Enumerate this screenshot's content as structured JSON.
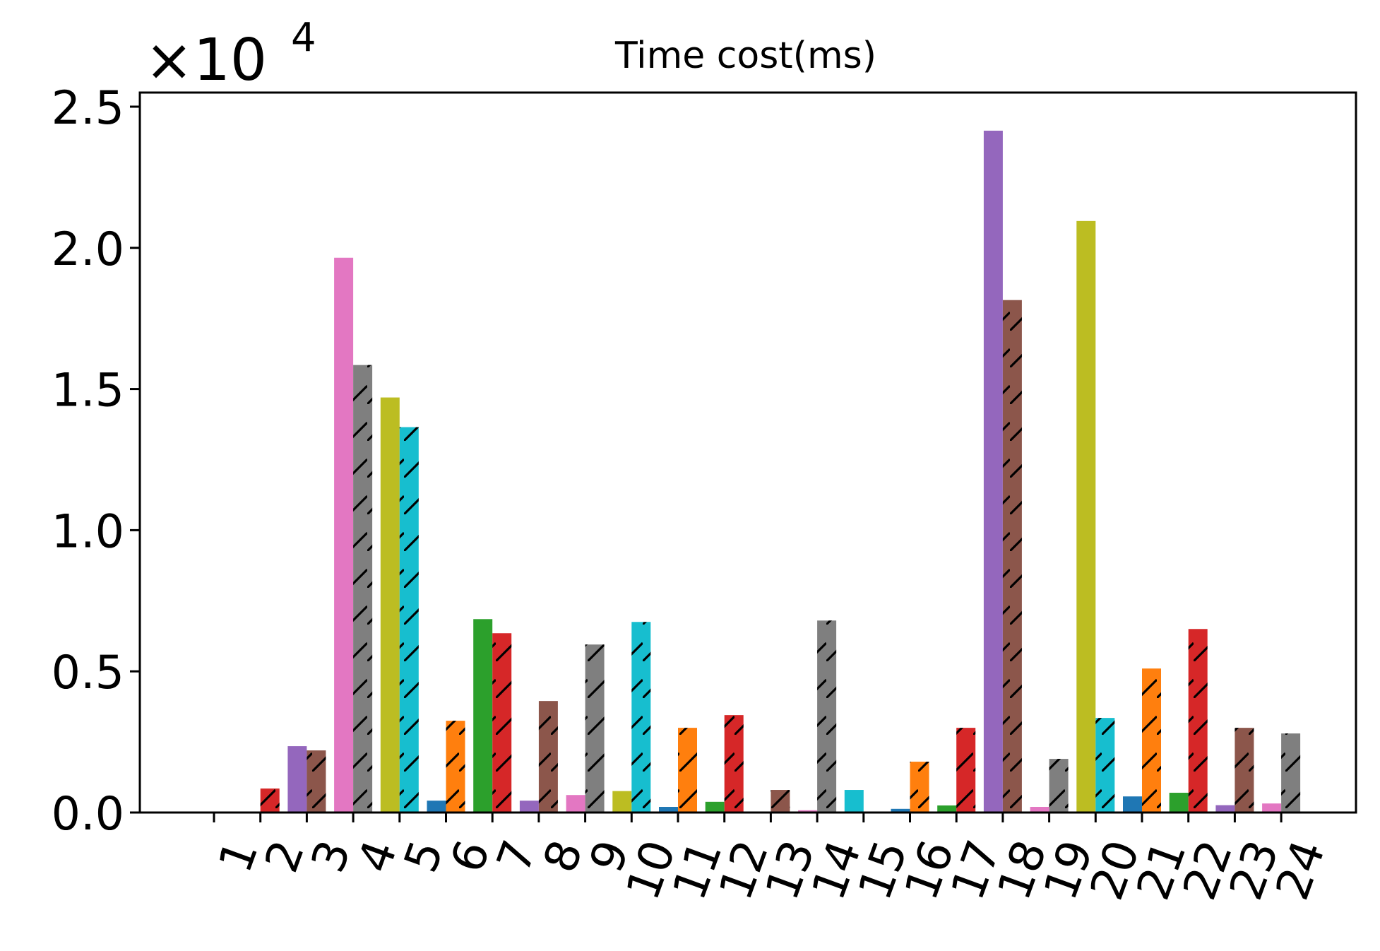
{
  "chart_data": {
    "type": "bar",
    "title": "Time cost(ms)",
    "xlabel": "",
    "ylabel": "",
    "y_offset_text": "×10",
    "y_offset_exponent": "4",
    "ylim": [
      0,
      25500
    ],
    "yticks": [
      0,
      5000,
      10000,
      15000,
      20000,
      25000
    ],
    "ytick_labels": [
      "0.0",
      "0.5",
      "1.0",
      "1.5",
      "2.0",
      "2.5"
    ],
    "categories": [
      "1",
      "2",
      "3",
      "4",
      "5",
      "6",
      "7",
      "8",
      "9",
      "10",
      "11",
      "12",
      "13",
      "14",
      "15",
      "16",
      "17",
      "18",
      "19",
      "20",
      "21",
      "22",
      "23",
      "24"
    ],
    "hatch_pattern": "diagonal",
    "series": [
      {
        "values": [
          0,
          0,
          2350,
          19650,
          14700,
          420,
          6850,
          420,
          620,
          760,
          200,
          380,
          0,
          80,
          0,
          130,
          250,
          24150,
          200,
          20950,
          570,
          700,
          260,
          320
        ]
      },
      {
        "values": [
          0,
          850,
          2200,
          15850,
          13650,
          3250,
          6350,
          3950,
          5950,
          6750,
          3000,
          3450,
          800,
          6800,
          0,
          1800,
          3000,
          18150,
          1900,
          3350,
          5100,
          6500,
          3000,
          2800
        ],
        "hatched": true
      }
    ],
    "colors": [
      "#1f77b4",
      "#ff7f0e",
      "#2ca02c",
      "#d62728",
      "#9467bd",
      "#8c564b",
      "#e377c2",
      "#7f7f7f",
      "#bcbd22",
      "#17becf"
    ],
    "extra_bars": [
      {
        "category": "15",
        "value": 800,
        "color": "#17becf"
      }
    ],
    "grid": false,
    "legend": "none"
  }
}
